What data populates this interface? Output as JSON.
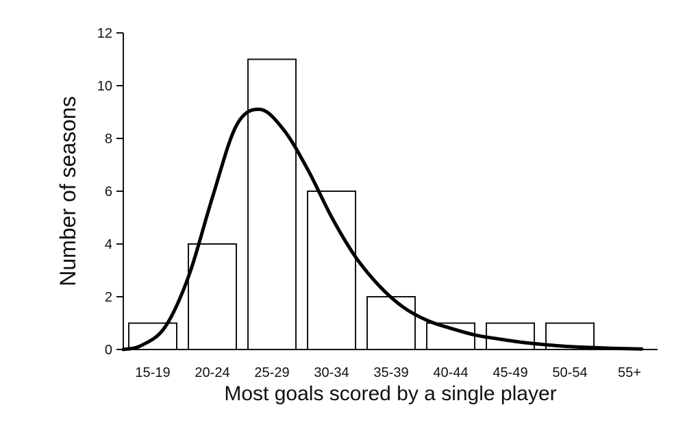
{
  "chart_data": {
    "type": "bar",
    "title": "",
    "xlabel": "Most goals scored by a single player",
    "ylabel": "Number of seasons",
    "categories": [
      "15-19",
      "20-24",
      "25-29",
      "30-34",
      "35-39",
      "40-44",
      "45-49",
      "50-54",
      "55+"
    ],
    "values": [
      1,
      4,
      11,
      6,
      2,
      1,
      1,
      1,
      0
    ],
    "yticks": [
      "0",
      "2",
      "4",
      "6",
      "8",
      "10",
      "12"
    ],
    "ylim": [
      0,
      12
    ],
    "grid": false,
    "legend": "none",
    "fitted_curve": {
      "type": "line",
      "x": [
        15.5,
        17,
        19,
        21,
        23,
        25,
        27,
        29,
        31,
        33,
        35,
        37,
        39,
        41,
        43,
        45,
        47,
        49,
        51,
        53,
        55,
        57,
        59
      ],
      "y": [
        0,
        0.15,
        0.85,
        2.8,
        5.8,
        8.5,
        9.1,
        8.3,
        6.8,
        5.0,
        3.5,
        2.4,
        1.6,
        1.1,
        0.8,
        0.55,
        0.4,
        0.27,
        0.18,
        0.11,
        0.07,
        0.04,
        0.02
      ]
    },
    "colors": {
      "bar_fill": "#ffffff",
      "bar_stroke": "#111111",
      "curve": "#000000",
      "axis": "#111111"
    }
  }
}
